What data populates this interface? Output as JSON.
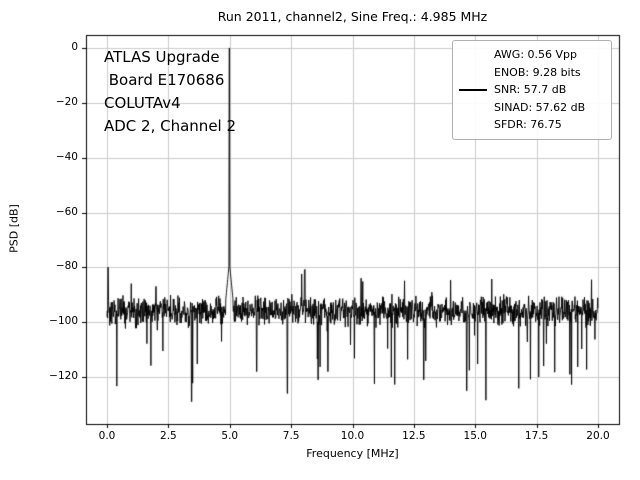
{
  "chart_data": {
    "type": "line",
    "title": "Run 2011, channel2, Sine Freq.: 4.985 MHz",
    "xlabel": "Frequency [MHz]",
    "ylabel": "PSD [dB]",
    "xlim": [
      0,
      20
    ],
    "ylim": [
      -137,
      5
    ],
    "grid": true,
    "line_color": "#000000",
    "grid_color": "#cccccc",
    "xticks": [
      0,
      2.5,
      5,
      7.5,
      10,
      12.5,
      15,
      17.5,
      20
    ],
    "xtick_labels": [
      "0.0",
      "2.5",
      "5.0",
      "7.5",
      "10.0",
      "12.5",
      "15.0",
      "17.5",
      "20.0"
    ],
    "yticks": [
      0,
      -20,
      -40,
      -60,
      -80,
      -100,
      -120
    ],
    "ytick_labels": [
      "0",
      "−20",
      "−40",
      "−60",
      "−80",
      "−100",
      "−120"
    ],
    "noise_floor_db": -96,
    "noise_spread_db": 15,
    "points_count": 1600,
    "seed": 20117,
    "peaks": [
      {
        "freq_mhz": 4.985,
        "level_db": 0,
        "skirt_level_db": -78,
        "skirt_width_mhz": 0.15
      },
      {
        "freq_mhz": 0.04,
        "level_db": -80
      },
      {
        "freq_mhz": 8.05,
        "level_db": -81
      },
      {
        "freq_mhz": 10.35,
        "level_db": -84
      },
      {
        "freq_mhz": 2.0,
        "level_db": -87
      }
    ],
    "dips": [
      {
        "freq_mhz": 3.45,
        "level_db": -129
      },
      {
        "freq_mhz": 7.35,
        "level_db": -126
      },
      {
        "freq_mhz": 8.6,
        "level_db": -121
      },
      {
        "freq_mhz": 9.0,
        "level_db": -118
      },
      {
        "freq_mhz": 12.9,
        "level_db": -121
      },
      {
        "freq_mhz": 14.65,
        "level_db": -125
      },
      {
        "freq_mhz": 6.1,
        "level_db": -118
      },
      {
        "freq_mhz": 18.85,
        "level_db": -119
      }
    ]
  },
  "annotation": {
    "lines": [
      "ATLAS Upgrade",
      " Board E170686",
      "COLUTAv4",
      "ADC 2, Channel 2"
    ]
  },
  "legend": {
    "items": [
      {
        "label": "AWG: 0.56 Vpp",
        "has_line": false
      },
      {
        "label": "ENOB: 9.28 bits",
        "has_line": false
      },
      {
        "label": "SNR: 57.7 dB",
        "has_line": true
      },
      {
        "label": "SINAD: 57.62 dB",
        "has_line": false
      },
      {
        "label": "SFDR: 76.75",
        "has_line": false
      }
    ]
  }
}
